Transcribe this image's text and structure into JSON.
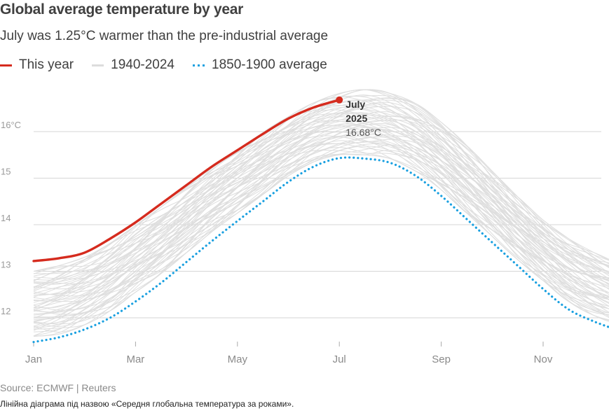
{
  "title": "Global average temperature by year",
  "subtitle": "July was 1.25°C warmer than the pre-industrial average",
  "legend": [
    {
      "label": "This year",
      "color": "#d52b1e",
      "style": "solid"
    },
    {
      "label": "1940-2024",
      "color": "#dcdcdc",
      "style": "solid"
    },
    {
      "label": "1850-1900 average",
      "color": "#1aa0e0",
      "style": "dotted"
    }
  ],
  "annotation": {
    "line1": "July",
    "line2": "2025",
    "value": "16.68°C"
  },
  "source": "Source: ECMWF | Reuters",
  "caption": "Лінійна діаграма під назвою «Середня глобальна температура за роками».",
  "chart_data": {
    "type": "line",
    "x_ticks": [
      "Jan",
      "Mar",
      "May",
      "Jul",
      "Sep",
      "Nov"
    ],
    "x_tick_months": [
      1,
      3,
      5,
      7,
      9,
      11
    ],
    "y_ticks": [
      {
        "value": 12,
        "label": "12"
      },
      {
        "value": 13,
        "label": "13"
      },
      {
        "value": 14,
        "label": "14"
      },
      {
        "value": 15,
        "label": "15"
      },
      {
        "value": 16,
        "label": "16°C"
      }
    ],
    "xlim": [
      1,
      12.5
    ],
    "ylim": [
      11.5,
      17
    ],
    "grid": "horizontal",
    "series": [
      {
        "name": "This year",
        "color": "#d52b1e",
        "style": "solid",
        "x": [
          1,
          1.5,
          2,
          2.5,
          3,
          3.5,
          4,
          4.5,
          5,
          5.5,
          6,
          6.5,
          7
        ],
        "y": [
          13.22,
          13.28,
          13.4,
          13.7,
          14.05,
          14.45,
          14.85,
          15.25,
          15.6,
          15.95,
          16.28,
          16.52,
          16.68
        ]
      },
      {
        "name": "1850-1900 average",
        "color": "#1aa0e0",
        "style": "dotted",
        "x": [
          1,
          1.5,
          2,
          2.5,
          3,
          3.5,
          4,
          4.5,
          5,
          5.5,
          6,
          6.5,
          7,
          7.5,
          8,
          8.5,
          9,
          9.5,
          10,
          10.5,
          11,
          11.5,
          12,
          12.5
        ],
        "y": [
          11.48,
          11.58,
          11.75,
          12.0,
          12.35,
          12.75,
          13.2,
          13.65,
          14.08,
          14.5,
          14.92,
          15.25,
          15.43,
          15.42,
          15.33,
          15.05,
          14.62,
          14.12,
          13.62,
          13.12,
          12.62,
          12.18,
          11.92,
          11.72
        ]
      },
      {
        "name": "1940-2024",
        "color": "#dcdcdc",
        "style": "solid",
        "x": [
          1,
          1.5,
          2,
          2.5,
          3,
          3.5,
          4,
          4.5,
          5,
          5.5,
          6,
          6.5,
          7,
          7.5,
          8,
          8.5,
          9,
          9.5,
          10,
          10.5,
          11,
          11.5,
          12,
          12.5
        ],
        "y_low": [
          11.6,
          11.65,
          11.85,
          12.15,
          12.55,
          12.95,
          13.4,
          13.85,
          14.25,
          14.65,
          15.05,
          15.35,
          15.5,
          15.5,
          15.42,
          15.15,
          14.75,
          14.25,
          13.75,
          13.25,
          12.8,
          12.35,
          12.05,
          11.85
        ],
        "y_high": [
          13.0,
          13.12,
          13.3,
          13.6,
          13.98,
          14.38,
          14.8,
          15.22,
          15.6,
          15.98,
          16.32,
          16.62,
          16.82,
          16.9,
          16.82,
          16.6,
          16.2,
          15.7,
          15.15,
          14.6,
          14.1,
          13.7,
          13.4,
          13.15
        ],
        "count": 85
      }
    ]
  }
}
